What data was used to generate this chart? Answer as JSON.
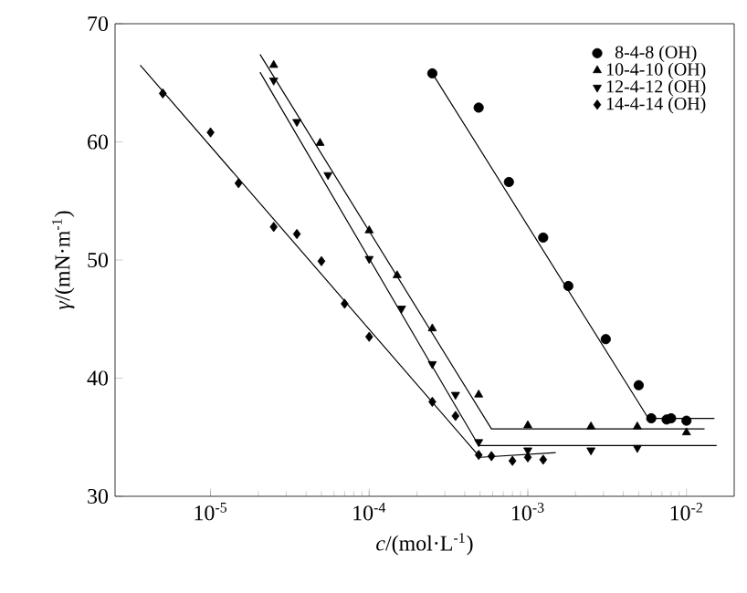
{
  "chart_data": {
    "type": "scatter",
    "xlabel": "*c*/(mol·L$^{-1}$)",
    "ylabel": "*γ*/(mN·m$^{-1}$)",
    "log": "x",
    "grid": false,
    "legend": "top right",
    "xlim": [
      2.5e-06,
      0.02
    ],
    "ylim": [
      30,
      70
    ],
    "xticks": [
      {
        "value": 1e-05,
        "label": "10$^{-5}$"
      },
      {
        "value": 0.0001,
        "label": "10$^{-4}$"
      },
      {
        "value": 0.001,
        "label": "10$^{-3}$"
      },
      {
        "value": 0.01,
        "label": "10$^{-2}$"
      }
    ],
    "yticks": [
      30,
      40,
      50,
      60,
      70
    ],
    "series": [
      {
        "name": "8-4-8 (OH)",
        "marker": "circle",
        "color": "#000000",
        "x": [
          0.00025,
          0.00049,
          0.00076,
          0.00125,
          0.0018,
          0.0031,
          0.005,
          0.006,
          0.0075,
          0.008,
          0.01
        ],
        "values": [
          65.8,
          62.9,
          56.6,
          51.9,
          47.8,
          43.3,
          39.4,
          36.6,
          36.5,
          36.6,
          36.4
        ]
      },
      {
        "name": "10-4-10 (OH)",
        "marker": "triangle",
        "color": "#000000",
        "x": [
          2.5e-05,
          4.9e-05,
          0.0001,
          0.00015,
          0.00025,
          0.00049,
          0.001,
          0.0025,
          0.0049,
          0.01
        ],
        "values": [
          66.5,
          59.9,
          52.5,
          48.7,
          44.2,
          38.6,
          36.0,
          35.9,
          35.9,
          35.4
        ]
      },
      {
        "name": "12-4-12 (OH)",
        "marker": "triangle-down",
        "color": "#000000",
        "x": [
          2.5e-05,
          3.5e-05,
          5.5e-05,
          0.0001,
          0.00016,
          0.00025,
          0.00035,
          0.00049,
          0.001,
          0.0025,
          0.0049
        ],
        "values": [
          65.2,
          61.7,
          57.2,
          50.1,
          45.9,
          41.2,
          38.6,
          34.6,
          33.9,
          33.9,
          34.1
        ]
      },
      {
        "name": "14-4-14 (OH)",
        "marker": "diamond",
        "color": "#000000",
        "x": [
          5e-06,
          1e-05,
          1.5e-05,
          2.5e-05,
          3.5e-05,
          5e-05,
          7e-05,
          0.0001,
          0.00025,
          0.00035,
          0.00049,
          0.00059,
          0.0008,
          0.001,
          0.00125
        ],
        "values": [
          64.1,
          60.8,
          56.5,
          52.8,
          52.2,
          49.9,
          46.3,
          43.5,
          38.0,
          36.8,
          33.5,
          33.4,
          33.0,
          33.3,
          33.1
        ]
      },
      {
        "type": "line",
        "color": "#000000",
        "x": [
          0.00025,
          0.00575,
          0.015
        ],
        "values": [
          65.8,
          36.6,
          36.6
        ]
      },
      {
        "type": "line",
        "color": "#000000",
        "x": [
          2.05e-05,
          0.00059,
          0.013
        ],
        "values": [
          67.4,
          35.7,
          35.7
        ]
      },
      {
        "type": "line",
        "color": "#000000",
        "x": [
          2.05e-05,
          0.00049,
          0.0155
        ],
        "values": [
          65.9,
          34.3,
          34.3
        ]
      },
      {
        "type": "line",
        "color": "#000000",
        "x": [
          3.6e-06,
          0.0005,
          0.0015
        ],
        "values": [
          66.5,
          33.3,
          33.7
        ]
      }
    ]
  }
}
